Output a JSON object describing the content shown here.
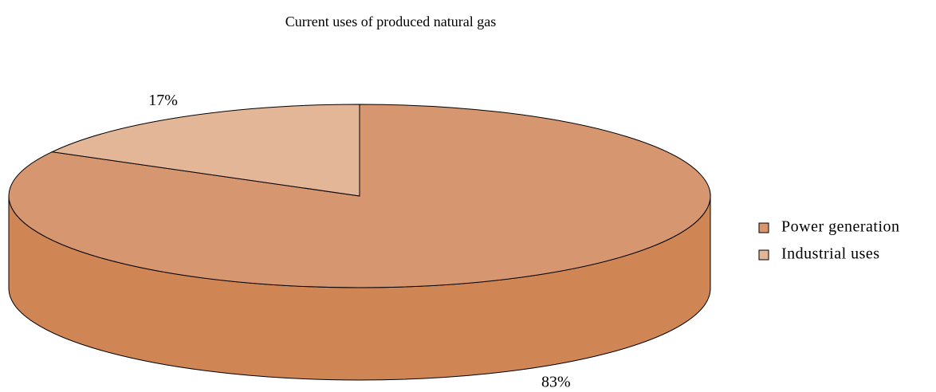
{
  "chart_data": {
    "type": "pie",
    "title": "Current uses of produced natural gas",
    "categories": [
      "Power generation",
      "Industrial uses"
    ],
    "values": [
      83,
      17
    ],
    "value_labels": [
      "83%",
      "17%"
    ],
    "colors": [
      "#D69670",
      "#E3B698"
    ],
    "legend": "right"
  }
}
